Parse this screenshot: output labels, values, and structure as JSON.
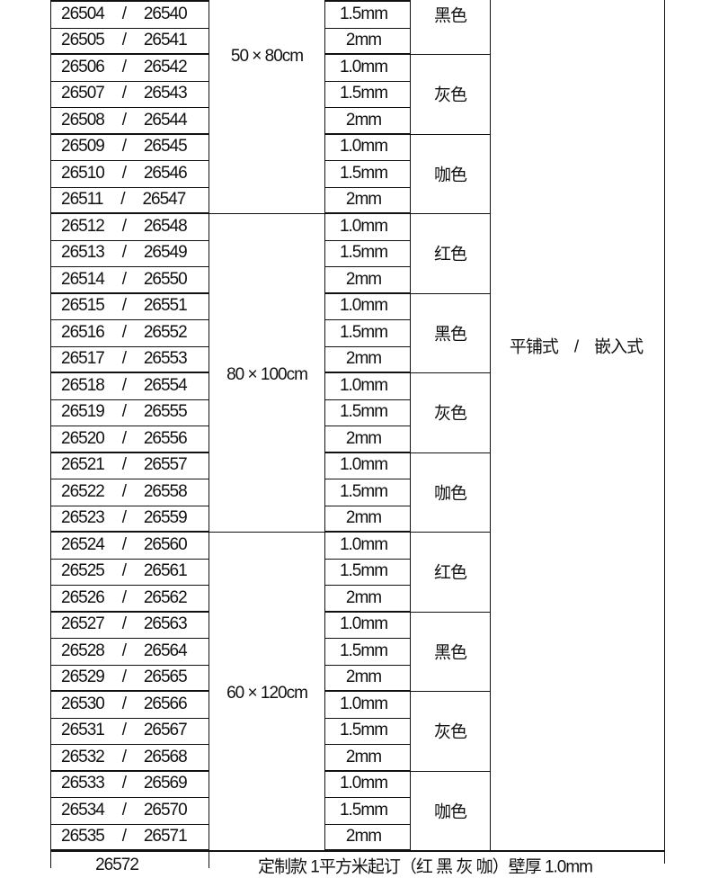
{
  "rows": [
    {
      "a": "26504",
      "b": "26540",
      "t": "1.5mm"
    },
    {
      "a": "26505",
      "b": "26541",
      "t": "2mm"
    },
    {
      "a": "26506",
      "b": "26542",
      "t": "1.0mm"
    },
    {
      "a": "26507",
      "b": "26543",
      "t": "1.5mm"
    },
    {
      "a": "26508",
      "b": "26544",
      "t": "2mm"
    },
    {
      "a": "26509",
      "b": "26545",
      "t": "1.0mm"
    },
    {
      "a": "26510",
      "b": "26546",
      "t": "1.5mm"
    },
    {
      "a": "26511",
      "b": "26547",
      "t": "2mm"
    },
    {
      "a": "26512",
      "b": "26548",
      "t": "1.0mm"
    },
    {
      "a": "26513",
      "b": "26549",
      "t": "1.5mm"
    },
    {
      "a": "26514",
      "b": "26550",
      "t": "2mm"
    },
    {
      "a": "26515",
      "b": "26551",
      "t": "1.0mm"
    },
    {
      "a": "26516",
      "b": "26552",
      "t": "1.5mm"
    },
    {
      "a": "26517",
      "b": "26553",
      "t": "2mm"
    },
    {
      "a": "26518",
      "b": "26554",
      "t": "1.0mm"
    },
    {
      "a": "26519",
      "b": "26555",
      "t": "1.5mm"
    },
    {
      "a": "26520",
      "b": "26556",
      "t": "2mm"
    },
    {
      "a": "26521",
      "b": "26557",
      "t": "1.0mm"
    },
    {
      "a": "26522",
      "b": "26558",
      "t": "1.5mm"
    },
    {
      "a": "26523",
      "b": "26559",
      "t": "2mm"
    },
    {
      "a": "26524",
      "b": "26560",
      "t": "1.0mm"
    },
    {
      "a": "26525",
      "b": "26561",
      "t": "1.5mm"
    },
    {
      "a": "26526",
      "b": "26562",
      "t": "2mm"
    },
    {
      "a": "26527",
      "b": "26563",
      "t": "1.0mm"
    },
    {
      "a": "26528",
      "b": "26564",
      "t": "1.5mm"
    },
    {
      "a": "26529",
      "b": "26565",
      "t": "2mm"
    },
    {
      "a": "26530",
      "b": "26566",
      "t": "1.0mm"
    },
    {
      "a": "26531",
      "b": "26567",
      "t": "1.5mm"
    },
    {
      "a": "26532",
      "b": "26568",
      "t": "2mm"
    },
    {
      "a": "26533",
      "b": "26569",
      "t": "1.0mm"
    },
    {
      "a": "26534",
      "b": "26570",
      "t": "1.5mm"
    },
    {
      "a": "26535",
      "b": "26571",
      "t": "2mm"
    }
  ],
  "separator": "/",
  "sizes": [
    {
      "label": "50 × 80cm",
      "from": -4,
      "to": 7
    },
    {
      "label": "80 × 100cm",
      "from": 8,
      "to": 19
    },
    {
      "label": "60 × 120cm",
      "from": 20,
      "to": 31
    }
  ],
  "colors": [
    {
      "label": "黑色",
      "from": -1,
      "to": 1
    },
    {
      "label": "灰色",
      "from": 2,
      "to": 4
    },
    {
      "label": "咖色",
      "from": 5,
      "to": 7
    },
    {
      "label": "红色",
      "from": 8,
      "to": 10
    },
    {
      "label": "黑色",
      "from": 11,
      "to": 13
    },
    {
      "label": "灰色",
      "from": 14,
      "to": 16
    },
    {
      "label": "咖色",
      "from": 17,
      "to": 19
    },
    {
      "label": "红色",
      "from": 20,
      "to": 22
    },
    {
      "label": "黑色",
      "from": 23,
      "to": 25
    },
    {
      "label": "灰色",
      "from": 26,
      "to": 28
    },
    {
      "label": "咖色",
      "from": 29,
      "to": 31
    }
  ],
  "mount": "平铺式　/　嵌入式",
  "custom": {
    "code": "26572",
    "text": "定制款 1平方米起订（红 黑 灰 咖）壁厚 1.0mm"
  }
}
